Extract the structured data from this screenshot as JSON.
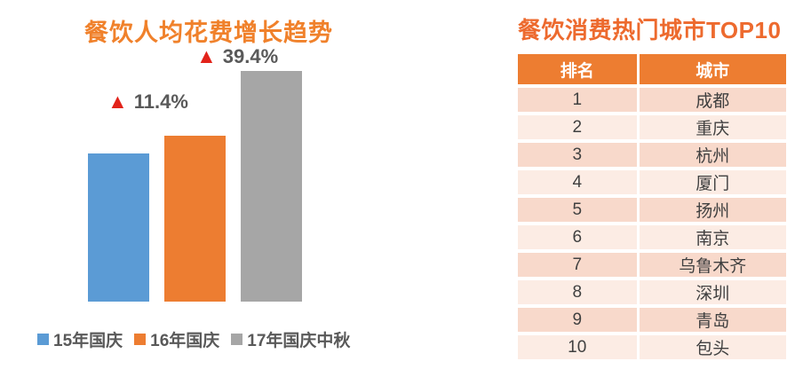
{
  "chart": {
    "title": "餐饮人均花费增长趋势",
    "legend": [
      "15年国庆",
      "16年国庆",
      "17年国庆中秋"
    ]
  },
  "chart_data": {
    "type": "bar",
    "title": "餐饮人均花费增长趋势",
    "categories": [
      "15年国庆",
      "16年国庆",
      "17年国庆中秋"
    ],
    "values": [
      100,
      111.4,
      155.3
    ],
    "ylim": [
      0,
      160
    ],
    "xlabel": "",
    "ylabel": "",
    "grid": false,
    "axes_visible": false,
    "legend_position": "bottom",
    "colors": [
      "#5B9BD5",
      "#ED7D31",
      "#A6A6A6"
    ],
    "annotations": [
      {
        "target": "16年国庆",
        "icon": "▲",
        "label": "11.4%"
      },
      {
        "target": "17年国庆中秋",
        "icon": "▲",
        "label": "39.4%"
      }
    ]
  },
  "table": {
    "title": "餐饮消费热门城市TOP10",
    "columns": [
      "排名",
      "城市"
    ],
    "rows": [
      {
        "rank": "1",
        "city": "成都"
      },
      {
        "rank": "2",
        "city": "重庆"
      },
      {
        "rank": "3",
        "city": "杭州"
      },
      {
        "rank": "4",
        "city": "厦门"
      },
      {
        "rank": "5",
        "city": "扬州"
      },
      {
        "rank": "6",
        "city": "南京"
      },
      {
        "rank": "7",
        "city": "乌鲁木齐"
      },
      {
        "rank": "8",
        "city": "深圳"
      },
      {
        "rank": "9",
        "city": "青岛"
      },
      {
        "rank": "10",
        "city": "包头"
      }
    ]
  },
  "colors": {
    "chart_title": "#F0812B",
    "table_title": "#ED6A2E",
    "table_header_bg": "#ED7D31",
    "table_header_text": "#FFFFFF",
    "row_odd_bg": "#F8D9CB",
    "row_even_bg": "#FCECE4",
    "triangle_red": "#E2231A",
    "annotation_text": "#595959",
    "legend_text": "#595959",
    "bar_blue": "#5B9BD5",
    "bar_orange": "#ED7D31",
    "bar_gray": "#A6A6A6"
  }
}
